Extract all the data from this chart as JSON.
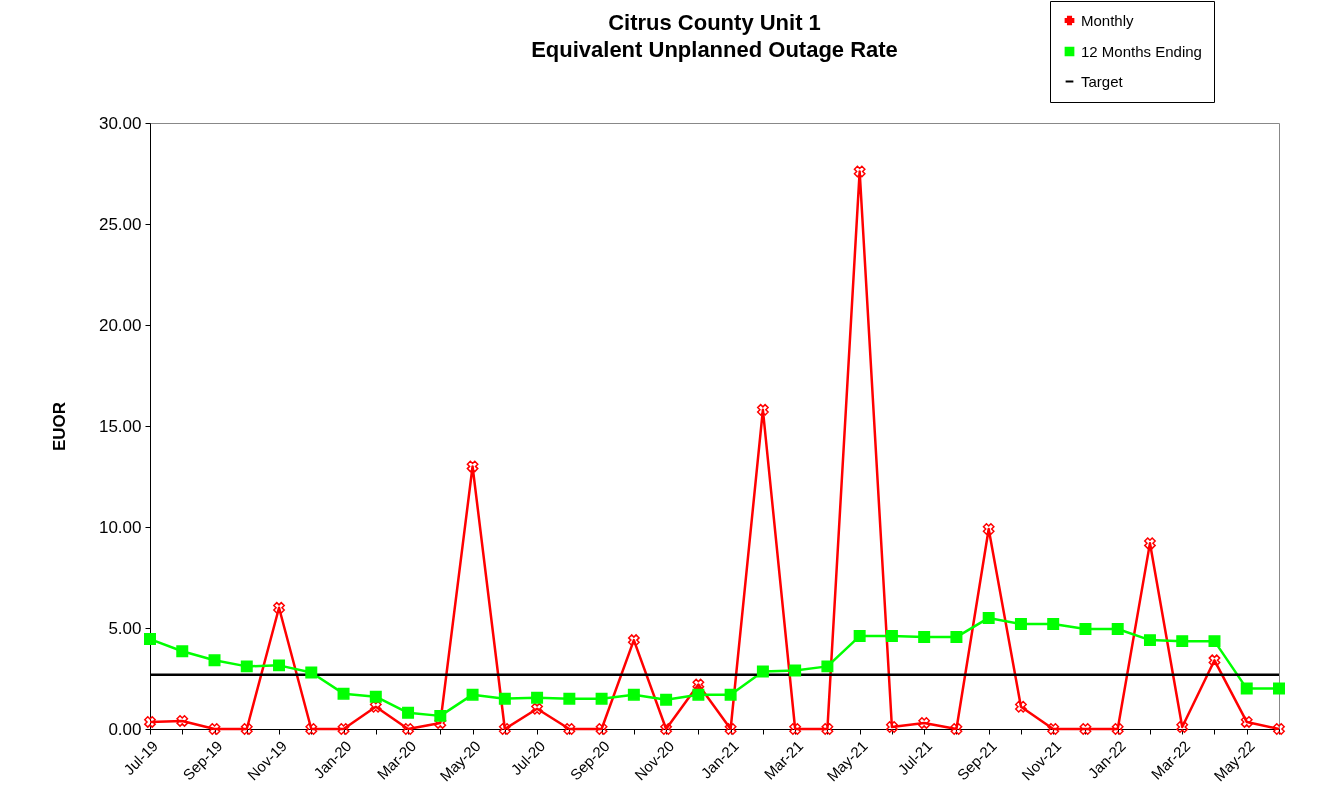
{
  "chart_data": {
    "type": "line",
    "title": "Citrus County Unit 1\nEquivalent Unplanned Outage Rate",
    "ylabel": "EUOR",
    "categories": [
      "Jul-19",
      null,
      "Sep-19",
      null,
      "Nov-19",
      null,
      "Jan-20",
      null,
      "Mar-20",
      null,
      "May-20",
      null,
      "Jul-20",
      null,
      "Sep-20",
      null,
      "Nov-20",
      null,
      "Jan-21",
      null,
      "Mar-21",
      null,
      "May-21",
      null,
      "Jul-21",
      null,
      "Sep-21",
      null,
      "Nov-21",
      null,
      "Jan-22",
      null,
      "Mar-22",
      null,
      "May-22",
      null
    ],
    "series": [
      {
        "name": "Monthly",
        "color": "#ff0000",
        "marker": "cross",
        "values": [
          0.35,
          0.4,
          0,
          0,
          6.0,
          0,
          0,
          1.1,
          0,
          0.3,
          13.0,
          0,
          1.0,
          0,
          0,
          4.4,
          0,
          2.2,
          0,
          15.8,
          0,
          0,
          27.6,
          0.1,
          0.3,
          0,
          9.9,
          1.1,
          0,
          0,
          0,
          9.2,
          0.1,
          3.4,
          0.35,
          0
        ]
      },
      {
        "name": "12 Months Ending",
        "color": "#00ff00",
        "marker": "square",
        "values": [
          4.45,
          3.85,
          3.4,
          3.1,
          3.15,
          2.8,
          1.75,
          1.6,
          0.8,
          0.65,
          1.7,
          1.5,
          1.55,
          1.5,
          1.5,
          1.7,
          1.45,
          1.7,
          1.7,
          2.85,
          2.9,
          3.1,
          4.6,
          4.6,
          4.55,
          4.55,
          5.5,
          5.2,
          5.2,
          4.95,
          4.95,
          4.4,
          4.35,
          4.35,
          2.0,
          2.0
        ]
      },
      {
        "name": "Target",
        "color": "#000000",
        "marker": "none",
        "values": [
          2.68,
          2.68,
          2.68,
          2.68,
          2.68,
          2.68,
          2.68,
          2.68,
          2.68,
          2.68,
          2.68,
          2.68,
          2.68,
          2.68,
          2.68,
          2.68,
          2.68,
          2.68,
          2.68,
          2.68,
          2.68,
          2.68,
          2.68,
          2.68,
          2.68,
          2.68,
          2.68,
          2.68,
          2.68,
          2.68,
          2.68,
          2.68,
          2.68,
          2.68,
          2.68,
          2.68
        ]
      }
    ],
    "ylim": [
      0,
      30
    ],
    "yticks": [
      {
        "value": 0,
        "label": "0.00"
      },
      {
        "value": 5,
        "label": "5.00"
      },
      {
        "value": 10,
        "label": "10.00"
      },
      {
        "value": 15,
        "label": "15.00"
      },
      {
        "value": 20,
        "label": "20.00"
      },
      {
        "value": 25,
        "label": "25.00"
      },
      {
        "value": 30,
        "label": "30.00"
      }
    ],
    "grid": false,
    "legend": "top right",
    "line_style": "solid"
  }
}
